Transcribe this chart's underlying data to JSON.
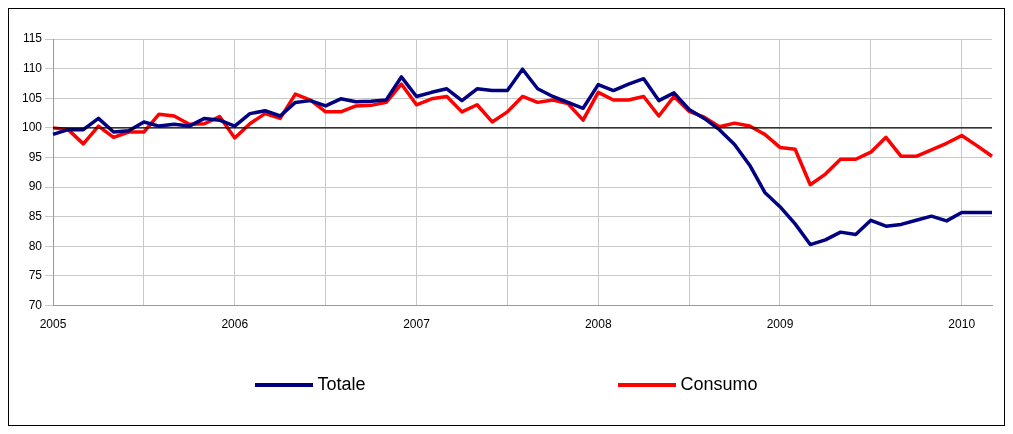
{
  "chart_data": {
    "type": "line",
    "categories": [
      "2005",
      null,
      null,
      null,
      null,
      null,
      null,
      null,
      null,
      null,
      null,
      null,
      "2006",
      null,
      null,
      null,
      null,
      null,
      null,
      null,
      null,
      null,
      null,
      null,
      "2007",
      null,
      null,
      null,
      null,
      null,
      null,
      null,
      null,
      null,
      null,
      null,
      "2008",
      null,
      null,
      null,
      null,
      null,
      null,
      null,
      null,
      null,
      null,
      null,
      "2009",
      null,
      null,
      null,
      null,
      null,
      null,
      null,
      null,
      null,
      null,
      null,
      "2010",
      null,
      null
    ],
    "series": [
      {
        "name": "Totale",
        "color": "#000080",
        "values": [
          98.9,
          99.7,
          99.7,
          101.6,
          99.3,
          99.5,
          101,
          100.3,
          100.6,
          100.3,
          101.6,
          101.3,
          100.3,
          102.4,
          102.9,
          102,
          104.3,
          104.6,
          103.7,
          104.9,
          104.4,
          104.5,
          104.7,
          108.6,
          105.3,
          106,
          106.6,
          104.6,
          106.6,
          106.3,
          106.3,
          109.9,
          106.6,
          105.3,
          104.3,
          103.3,
          107.3,
          106.3,
          107.4,
          108.3,
          104.6,
          105.9,
          103.1,
          101.6,
          99.7,
          97.2,
          93.7,
          89.1,
          86.7,
          83.8,
          80.3,
          81.1,
          82.4,
          82,
          84.4,
          83.4,
          83.7,
          84.4,
          85.1,
          84.3,
          85.7,
          85.7,
          85.7
        ]
      },
      {
        "name": "Consumo",
        "color": "#ff0000",
        "values": [
          100,
          99.7,
          97.3,
          100.3,
          98.4,
          99.3,
          99.3,
          102.3,
          102,
          100.6,
          100.7,
          101.9,
          98.3,
          100.7,
          102.4,
          101.6,
          105.7,
          104.7,
          102.7,
          102.7,
          103.7,
          103.8,
          104.3,
          107.4,
          103.9,
          104.9,
          105.3,
          102.7,
          103.9,
          101,
          102.7,
          105.3,
          104.3,
          104.7,
          104.1,
          101.3,
          106,
          104.7,
          104.7,
          105.3,
          102,
          105.3,
          102.8,
          101.8,
          100.2,
          100.8,
          100.3,
          98.9,
          96.7,
          96.4,
          90.4,
          92.2,
          94.7,
          94.7,
          95.9,
          98.4,
          95.2,
          95.2,
          96.3,
          97.4,
          98.7,
          97,
          95.2
        ]
      }
    ],
    "ylim": [
      70,
      115
    ],
    "yticks": [
      70,
      75,
      80,
      85,
      90,
      95,
      100,
      105,
      110,
      115
    ],
    "ref_lines": [
      {
        "axis": "y",
        "value": 100,
        "color": "#000000"
      }
    ],
    "grid": true,
    "legend": "bottom",
    "marker": "none",
    "line_style": "solid"
  }
}
